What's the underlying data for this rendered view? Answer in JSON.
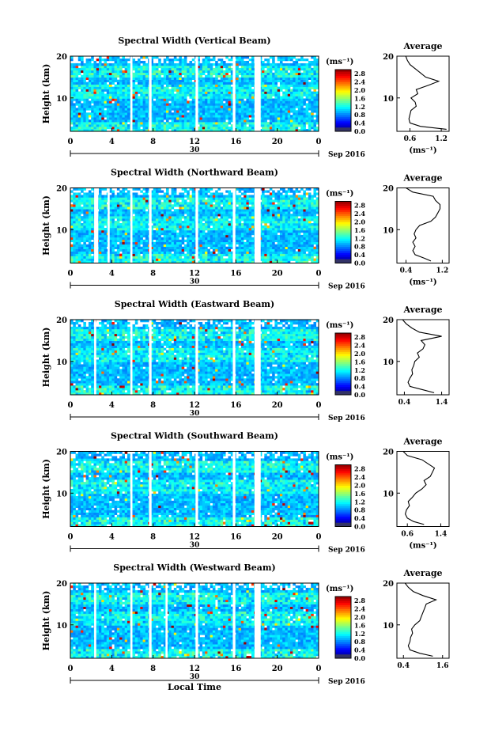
{
  "figure": {
    "xlabel": "Local Time",
    "date_month": "Sep 2016",
    "date_day": "30",
    "colorbar_unit": "(ms⁻¹)",
    "avg_title": "Average",
    "avg_unit": "(ms⁻¹)",
    "height_label": "Height (km)"
  },
  "chart_data": [
    {
      "type": "heatmap",
      "title": "Spectral Width (Vertical Beam)",
      "xlabel": "",
      "ylabel": "Height (km)",
      "x_ticks": [
        "0",
        "4",
        "8",
        "12",
        "16",
        "20",
        "0"
      ],
      "xlim": [
        0,
        24
      ],
      "y_ticks": [
        "10",
        "20"
      ],
      "ylim": [
        2,
        20
      ],
      "gaps_hours": [
        [
          5.8,
          6.0
        ],
        [
          7.6,
          7.85
        ],
        [
          12.1,
          12.35
        ],
        [
          15.7,
          15.95
        ],
        [
          17.8,
          18.4
        ]
      ],
      "colorbar": {
        "ticks": [
          "0.0",
          "0.4",
          "0.8",
          "1.2",
          "1.6",
          "2.0",
          "2.4",
          "2.8"
        ],
        "range": [
          0,
          3.0
        ]
      },
      "average_profile": {
        "type": "line",
        "title": "Average",
        "xlabel": "(ms⁻¹)",
        "x_ticks": [
          "0.6",
          "1.2"
        ],
        "xlim": [
          0.35,
          1.35
        ],
        "ylim": [
          2,
          20
        ],
        "y_ticks": [
          "10",
          "20"
        ],
        "height": [
          2.5,
          3.2,
          4,
          5,
          6,
          7,
          8,
          9,
          10,
          11,
          12,
          13,
          14,
          15,
          16,
          17,
          18,
          19,
          20
        ],
        "value": [
          1.3,
          0.8,
          0.6,
          0.58,
          0.6,
          0.62,
          0.72,
          0.7,
          0.62,
          0.75,
          0.72,
          0.95,
          1.15,
          0.9,
          0.8,
          0.7,
          0.6,
          0.55,
          0.52
        ]
      }
    },
    {
      "type": "heatmap",
      "title": "Spectral Width (Northward Beam)",
      "xlabel": "",
      "ylabel": "Height (km)",
      "x_ticks": [
        "0",
        "4",
        "8",
        "12",
        "16",
        "20",
        "0"
      ],
      "xlim": [
        0,
        24
      ],
      "y_ticks": [
        "10",
        "20"
      ],
      "ylim": [
        2,
        20
      ],
      "gaps_hours": [
        [
          2.3,
          2.7
        ],
        [
          3.6,
          3.8
        ],
        [
          5.8,
          6.0
        ],
        [
          7.6,
          7.85
        ],
        [
          12.1,
          12.35
        ],
        [
          15.7,
          15.95
        ],
        [
          17.8,
          18.4
        ]
      ],
      "colorbar": {
        "ticks": [
          "0.0",
          "0.4",
          "0.8",
          "1.2",
          "1.6",
          "2.0",
          "2.4",
          "2.8"
        ],
        "range": [
          0,
          3.0
        ]
      },
      "average_profile": {
        "type": "line",
        "title": "Average",
        "xlabel": "(ms⁻¹)",
        "x_ticks": [
          "0.4",
          "1.2"
        ],
        "xlim": [
          0.2,
          1.35
        ],
        "ylim": [
          2,
          20
        ],
        "y_ticks": [
          "10",
          "20"
        ],
        "height": [
          2.5,
          3.2,
          4,
          5,
          6,
          7,
          8,
          9,
          10,
          11,
          12,
          13,
          14,
          15,
          16,
          17,
          18,
          19,
          20
        ],
        "value": [
          0.95,
          0.8,
          0.6,
          0.55,
          0.6,
          0.55,
          0.62,
          0.58,
          0.62,
          0.7,
          0.95,
          1.05,
          1.1,
          1.15,
          1.15,
          1.05,
          1.0,
          0.55,
          0.4
        ]
      }
    },
    {
      "type": "heatmap",
      "title": "Spectral Width (Eastward Beam)",
      "xlabel": "",
      "ylabel": "Height (km)",
      "x_ticks": [
        "0",
        "4",
        "8",
        "12",
        "16",
        "20",
        "0"
      ],
      "xlim": [
        0,
        24
      ],
      "y_ticks": [
        "10",
        "20"
      ],
      "ylim": [
        2,
        20
      ],
      "gaps_hours": [
        [
          2.3,
          2.5
        ],
        [
          5.8,
          6.0
        ],
        [
          7.6,
          7.85
        ],
        [
          12.1,
          12.35
        ],
        [
          15.7,
          15.95
        ],
        [
          17.8,
          18.4
        ]
      ],
      "colorbar": {
        "ticks": [
          "0.0",
          "0.4",
          "0.8",
          "1.2",
          "1.6",
          "2.0",
          "2.4",
          "2.8"
        ],
        "range": [
          0,
          3.0
        ]
      },
      "average_profile": {
        "type": "line",
        "title": "Average",
        "xlabel": "",
        "x_ticks": [
          "0.4",
          "1.4"
        ],
        "xlim": [
          0.2,
          1.6
        ],
        "ylim": [
          2,
          20
        ],
        "y_ticks": [
          "10",
          "20"
        ],
        "height": [
          2.5,
          3.2,
          4,
          5,
          6,
          7,
          8,
          9,
          10,
          11,
          12,
          13,
          14,
          15,
          16,
          17,
          18,
          19,
          20
        ],
        "value": [
          1.2,
          0.9,
          0.55,
          0.5,
          0.55,
          0.62,
          0.6,
          0.65,
          0.68,
          0.8,
          0.75,
          0.9,
          0.95,
          0.85,
          1.4,
          0.8,
          0.6,
          0.45,
          0.35
        ]
      }
    },
    {
      "type": "heatmap",
      "title": "Spectral Width (Southward Beam)",
      "xlabel": "",
      "ylabel": "Height (km)",
      "x_ticks": [
        "0",
        "4",
        "8",
        "12",
        "16",
        "20",
        "0"
      ],
      "xlim": [
        0,
        24
      ],
      "y_ticks": [
        "10",
        "20"
      ],
      "ylim": [
        2,
        20
      ],
      "gaps_hours": [
        [
          5.8,
          6.0
        ],
        [
          7.6,
          7.85
        ],
        [
          12.1,
          12.35
        ],
        [
          15.7,
          15.95
        ],
        [
          17.8,
          18.4
        ]
      ],
      "colorbar": {
        "ticks": [
          "0.0",
          "0.4",
          "0.8",
          "1.2",
          "1.6",
          "2.0",
          "2.4",
          "2.8"
        ],
        "range": [
          0,
          3.0
        ]
      },
      "average_profile": {
        "type": "line",
        "title": "Average",
        "xlabel": "(ms⁻¹)",
        "x_ticks": [
          "0.6",
          "1.4"
        ],
        "xlim": [
          0.35,
          1.6
        ],
        "ylim": [
          2,
          20
        ],
        "y_ticks": [
          "10",
          "20"
        ],
        "height": [
          2.5,
          3.2,
          4,
          5,
          6,
          7,
          8,
          9,
          10,
          11,
          12,
          13,
          14,
          15,
          16,
          17,
          18,
          19,
          20
        ],
        "value": [
          1.0,
          0.75,
          0.6,
          0.55,
          0.58,
          0.65,
          0.62,
          0.72,
          0.8,
          0.95,
          1.05,
          1.0,
          1.15,
          1.2,
          1.25,
          1.1,
          0.95,
          0.6,
          0.5
        ]
      }
    },
    {
      "type": "heatmap",
      "title": "Spectral Width (Westward Beam)",
      "xlabel": "Local Time",
      "ylabel": "Height (km)",
      "x_ticks": [
        "0",
        "4",
        "8",
        "12",
        "16",
        "20",
        "0"
      ],
      "xlim": [
        0,
        24
      ],
      "y_ticks": [
        "10",
        "20"
      ],
      "ylim": [
        2,
        20
      ],
      "gaps_hours": [
        [
          2.3,
          2.5
        ],
        [
          5.8,
          6.0
        ],
        [
          7.6,
          7.85
        ],
        [
          9.2,
          9.4
        ],
        [
          12.1,
          12.35
        ],
        [
          15.7,
          15.95
        ],
        [
          17.8,
          18.4
        ]
      ],
      "colorbar": {
        "ticks": [
          "0.0",
          "0.4",
          "0.8",
          "1.2",
          "1.6",
          "2.0",
          "2.4",
          "2.8"
        ],
        "range": [
          0,
          3.0
        ]
      },
      "average_profile": {
        "type": "line",
        "title": "Average",
        "xlabel": "",
        "x_ticks": [
          "0.4",
          "1.6"
        ],
        "xlim": [
          0.2,
          1.8
        ],
        "ylim": [
          2,
          20
        ],
        "y_ticks": [
          "10",
          "20"
        ],
        "height": [
          2.5,
          3.2,
          4,
          5,
          6,
          7,
          8,
          9,
          10,
          11,
          12,
          13,
          14,
          15,
          16,
          17,
          18,
          19,
          20
        ],
        "value": [
          1.3,
          0.9,
          0.6,
          0.55,
          0.6,
          0.62,
          0.68,
          0.65,
          0.75,
          0.9,
          0.95,
          1.0,
          1.05,
          1.1,
          1.4,
          1.0,
          0.7,
          0.55,
          0.45
        ]
      }
    }
  ]
}
